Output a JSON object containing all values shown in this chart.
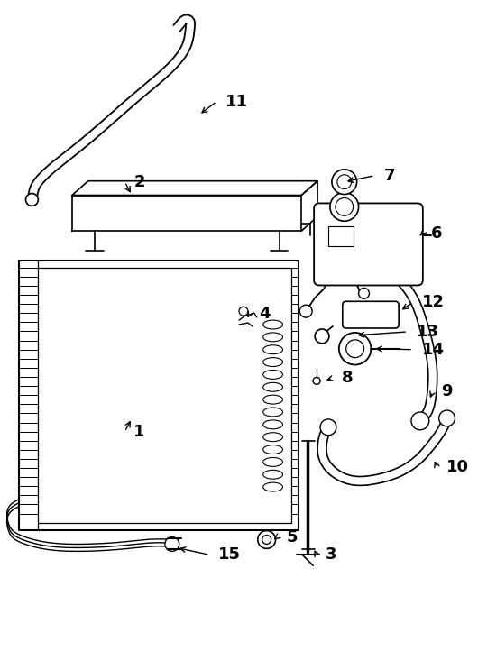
{
  "background_color": "#ffffff",
  "line_color": "#000000",
  "fig_width": 5.3,
  "fig_height": 7.22,
  "dpi": 100
}
